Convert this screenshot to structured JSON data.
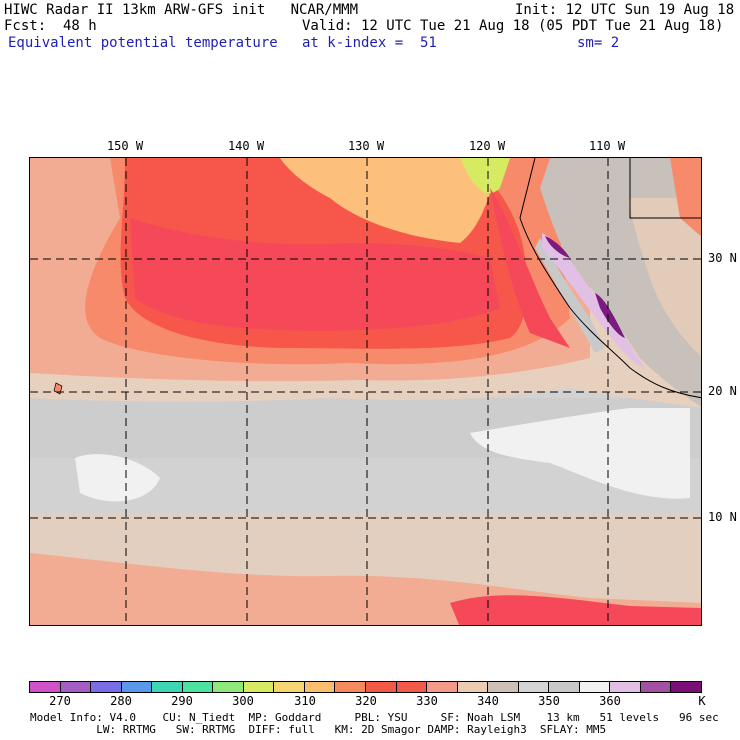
{
  "header": {
    "model_line": "HIWC Radar II 13km ARW-GFS init   NCAR/MMM",
    "init_line": "Init: 12 UTC Sun 19 Aug 18",
    "fcst_line": "Fcst:  48 h",
    "valid_line": "Valid: 12 UTC Tue 21 Aug 18 (05 PDT Tue 21 Aug 18)",
    "field_name": "Equivalent potential temperature",
    "level_text": "at k-index =  51",
    "smoothing": "sm= 2"
  },
  "map": {
    "longitude_labels": [
      "150 W",
      "140 W",
      "130 W",
      "120 W",
      "110 W"
    ],
    "latitude_labels": [
      "30 N",
      "20 N",
      "10 N"
    ],
    "field_colors": {
      "white": "#f1f1f1",
      "light_gray": "#d2d2d2",
      "gray": "#c3c3c3",
      "tan": "#e8d0bf",
      "light_salmon": "#f2ac94",
      "salmon": "#f88a6c",
      "red_orange": "#f6574a",
      "red": "#f5495a",
      "orange": "#fcbf7c",
      "purple": "#7b1a7f",
      "lavender": "#d8b6e0"
    }
  },
  "colorbar": {
    "labels": [
      "270",
      "280",
      "290",
      "300",
      "310",
      "320",
      "330",
      "340",
      "350",
      "360",
      "K"
    ],
    "colors": [
      "#d052c8",
      "#a65ec4",
      "#7a6ee6",
      "#5a98ea",
      "#3cd6b4",
      "#4ee2a0",
      "#8ee87a",
      "#d6ea62",
      "#f6d672",
      "#fbbd6e",
      "#f58b5c",
      "#f25a45",
      "#f25a4a",
      "#f39a88",
      "#eccbb3",
      "#cfc0b6",
      "#d4d4d4",
      "#c8c8c8",
      "#f1f1f1",
      "#e2c0e6",
      "#a24fa4",
      "#7a0f78"
    ]
  },
  "footer": {
    "line1": "Model Info: V4.0    CU: N_Tiedt  MP: Goddard     PBL: YSU     SF: Noah LSM    13 km   51 levels   96 sec",
    "line2": "          LW: RRTMG   SW: RRTMG  DIFF: full   KM: 2D Smagor DAMP: Rayleigh3  SFLAY: MM5"
  }
}
